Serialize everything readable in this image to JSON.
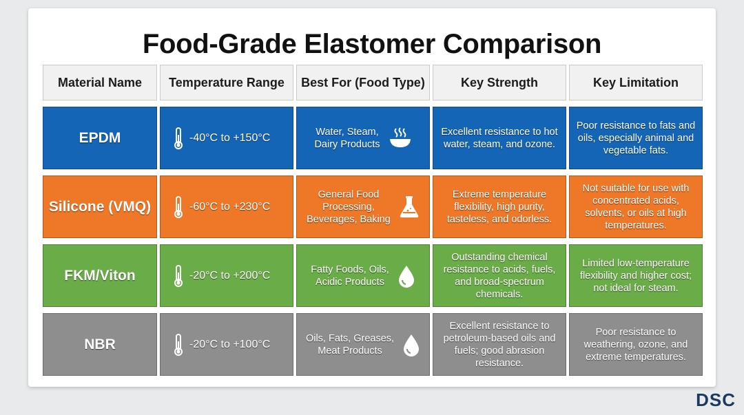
{
  "title": "Food-Grade Elastomer Comparison",
  "headers": {
    "material": "Material Name",
    "temperature": "Temperature Range",
    "best_for": "Best For (Food Type)",
    "strength": "Key Strength",
    "limitation": "Key Limitation"
  },
  "rows": [
    {
      "name": "EPDM",
      "color": "#1565b7",
      "temperature": "-40°C to +150°C",
      "best_for_line1": "Water, Steam,",
      "best_for_line2": "Dairy Products",
      "best_for_line3": "",
      "food_icon": "steaming-bowl-icon",
      "strength": "Excellent resistance to hot water, steam, and ozone.",
      "limitation": "Poor resistance to fats and oils, especially animal and vegetable fats."
    },
    {
      "name": "Silicone (VMQ)",
      "color": "#ee7728",
      "temperature": "-60°C to +230°C",
      "best_for_line1": "General Food",
      "best_for_line2": "Processing,",
      "best_for_line3": "Beverages, Baking",
      "food_icon": "flask-icon",
      "strength": "Extreme temperature flexibility, high purity, tasteless, and odorless.",
      "limitation": "Not suitable for use with concentrated acids, solvents, or oils at high temperatures."
    },
    {
      "name": "FKM/Viton",
      "color": "#6aac48",
      "temperature": "-20°C to +200°C",
      "best_for_line1": "Fatty Foods, Oils,",
      "best_for_line2": "Acidic Products",
      "best_for_line3": "",
      "food_icon": "droplet-icon",
      "strength": "Outstanding chemical resistance to acids, fuels, and broad-spectrum chemicals.",
      "limitation": "Limited low-temperature flexibility and higher cost; not ideal for steam."
    },
    {
      "name": "NBR",
      "color": "#8e8e8e",
      "temperature": "-20°C to +100°C",
      "best_for_line1": "Oils, Fats, Greases,",
      "best_for_line2": "Meat Products",
      "best_for_line3": "",
      "food_icon": "droplet-icon",
      "strength": "Excellent resistance to petroleum-based oils and fuels; good abrasion resistance.",
      "limitation": "Poor resistance to weathering, ozone, and extreme temperatures."
    }
  ],
  "logo": "DSC"
}
